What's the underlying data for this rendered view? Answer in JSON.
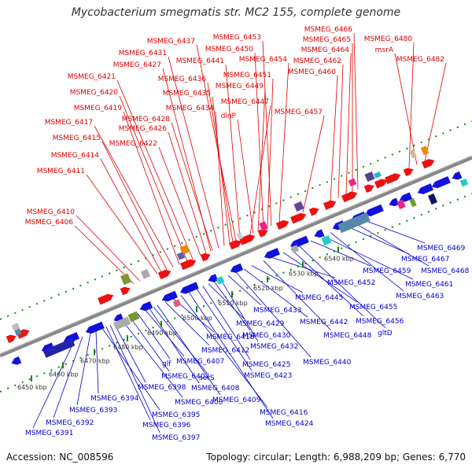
{
  "title": "Mycobacterium smegmatis str. MC2 155, complete genome",
  "footer": {
    "accession": "Accession: NC_008596",
    "summary": "Topology: circular; Length: 6,988,209 bp; Genes: 6,770"
  },
  "colors": {
    "forward_label": "#dd0000",
    "reverse_label": "#0000cc",
    "backbone": "#888888",
    "tick": "#118811"
  },
  "scale_ticks": [
    "6450 kbp",
    "6460 kbp",
    "6470 kbp",
    "6480 kbp",
    "6490 kbp",
    "6500 kbp",
    "6510 kbp",
    "6520 kbp",
    "6530 kbp",
    "6540 kbp"
  ],
  "forward_labels": [
    "MSMEG_6406",
    "MSMEG_6410",
    "MSMEG_6411",
    "MSMEG_6414",
    "MSMEG_6415",
    "MSMEG_6417",
    "MSMEG_6419",
    "MSMEG_6420",
    "MSMEG_6421",
    "MSMEG_6422",
    "MSMEG_6426",
    "MSMEG_6427",
    "MSMEG_6428",
    "MSMEG_6431",
    "MSMEG_6434",
    "MSMEG_6435",
    "MSMEG_6436",
    "MSMEG_6437",
    "MSMEG_6441",
    "MSMEG_6447",
    "dinP",
    "MSMEG_6449",
    "MSMEG_6450",
    "MSMEG_6451",
    "MSMEG_6453",
    "MSMEG_6454",
    "MSMEG_6457",
    "MSMEG_6460",
    "MSMEG_6462",
    "MSMEG_6464",
    "MSMEG_6465",
    "MSMEG_6466",
    "MSMEG_6480",
    "msrA",
    "MSMEG_6482"
  ],
  "reverse_labels": [
    "MSMEG_6391",
    "MSMEG_6392",
    "MSMEG_6393",
    "MSMEG_6394",
    "MSMEG_6395",
    "MSMEG_6396",
    "MSMEG_6397",
    "MSMEG_6398",
    "MSMEG_6400",
    "MSMEG_6402",
    "glf",
    "MSMEG_6407",
    "MSMEG_6408",
    "serS",
    "MSMEG_6409",
    "MSMEG_6412",
    "MSMEG_6418",
    "MSMEG_6416",
    "MSMEG_6424",
    "MSMEG_6423",
    "MSMEG_6425",
    "MSMEG_6429",
    "MSMEG_6430",
    "MSMEG_6432",
    "MSMEG_6433",
    "MSMEG_6440",
    "MSMEG_6442",
    "MSMEG_6445",
    "MSMEG_6448",
    "MSMEG_6452",
    "MSMEG_6455",
    "MSMEG_6456",
    "gltD",
    "MSMEG_6459",
    "MSMEG_6461",
    "MSMEG_6463",
    "MSMEG_6467",
    "MSMEG_6468",
    "MSMEG_6469"
  ]
}
